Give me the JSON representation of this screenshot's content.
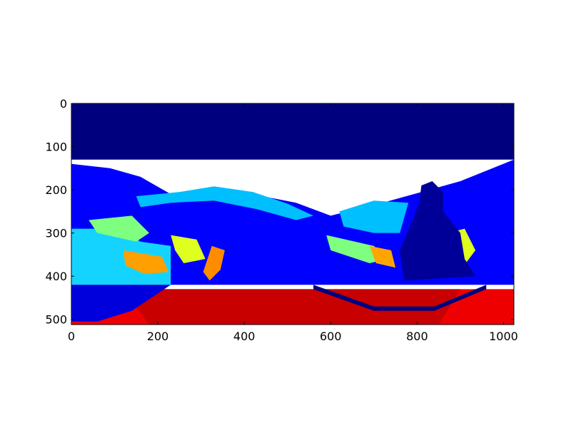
{
  "chart_data": {
    "type": "heatmap",
    "title": "",
    "xlabel": "",
    "ylabel": "",
    "xlim": [
      0,
      1024
    ],
    "ylim": [
      512,
      0
    ],
    "x_ticks": [
      0,
      200,
      400,
      600,
      800,
      1000
    ],
    "y_ticks": [
      0,
      100,
      200,
      300,
      400,
      500
    ],
    "x_tick_labels": [
      "0",
      "200",
      "400",
      "600",
      "800",
      "1000"
    ],
    "y_tick_labels": [
      "0",
      "100",
      "200",
      "300",
      "400",
      "500"
    ],
    "colormap": "jet",
    "grid": false,
    "legend": "none",
    "regions": [
      {
        "name": "sky-top",
        "value": 0.0,
        "color": "#00007f",
        "points": [
          [
            0,
            0
          ],
          [
            1024,
            0
          ],
          [
            1024,
            130
          ],
          [
            0,
            130
          ]
        ]
      },
      {
        "name": "wall-band",
        "value": 0.2,
        "color": "#0000ff",
        "points": [
          [
            0,
            140
          ],
          [
            90,
            150
          ],
          [
            160,
            170
          ],
          [
            230,
            210
          ],
          [
            340,
            195
          ],
          [
            520,
            230
          ],
          [
            600,
            260
          ],
          [
            720,
            230
          ],
          [
            900,
            180
          ],
          [
            1024,
            130
          ],
          [
            1024,
            420
          ],
          [
            0,
            420
          ]
        ]
      },
      {
        "name": "ceiling-arc",
        "value": 0.35,
        "color": "#00bfff",
        "points": [
          [
            150,
            215
          ],
          [
            250,
            205
          ],
          [
            330,
            192
          ],
          [
            420,
            205
          ],
          [
            500,
            232
          ],
          [
            560,
            260
          ],
          [
            520,
            270
          ],
          [
            430,
            245
          ],
          [
            330,
            225
          ],
          [
            230,
            230
          ],
          [
            160,
            240
          ]
        ]
      },
      {
        "name": "right-ceiling",
        "value": 0.35,
        "color": "#00bfff",
        "points": [
          [
            620,
            250
          ],
          [
            700,
            225
          ],
          [
            780,
            230
          ],
          [
            760,
            300
          ],
          [
            700,
            300
          ],
          [
            630,
            285
          ]
        ]
      },
      {
        "name": "left-panel",
        "value": 0.35,
        "color": "#14d4ff",
        "points": [
          [
            0,
            290
          ],
          [
            110,
            290
          ],
          [
            160,
            320
          ],
          [
            230,
            330
          ],
          [
            230,
            420
          ],
          [
            0,
            420
          ]
        ]
      },
      {
        "name": "left-green",
        "value": 0.55,
        "color": "#7fff7f",
        "points": [
          [
            40,
            270
          ],
          [
            140,
            260
          ],
          [
            180,
            300
          ],
          [
            150,
            320
          ],
          [
            60,
            300
          ]
        ]
      },
      {
        "name": "green-stripe",
        "value": 0.55,
        "color": "#7fff7f",
        "points": [
          [
            590,
            305
          ],
          [
            700,
            330
          ],
          [
            730,
            360
          ],
          [
            690,
            370
          ],
          [
            600,
            340
          ]
        ]
      },
      {
        "name": "yellow-left",
        "value": 0.65,
        "color": "#dfff1f",
        "points": [
          [
            230,
            305
          ],
          [
            290,
            315
          ],
          [
            310,
            360
          ],
          [
            260,
            370
          ],
          [
            240,
            340
          ]
        ]
      },
      {
        "name": "yellow-right",
        "value": 0.65,
        "color": "#dfff1f",
        "points": [
          [
            870,
            300
          ],
          [
            910,
            290
          ],
          [
            935,
            340
          ],
          [
            905,
            380
          ],
          [
            880,
            360
          ]
        ]
      },
      {
        "name": "orange-block",
        "value": 0.78,
        "color": "#ff9f00",
        "points": [
          [
            120,
            340
          ],
          [
            210,
            355
          ],
          [
            225,
            390
          ],
          [
            170,
            395
          ],
          [
            125,
            375
          ]
        ]
      },
      {
        "name": "orange-mid",
        "value": 0.78,
        "color": "#ff8c00",
        "points": [
          [
            325,
            330
          ],
          [
            355,
            340
          ],
          [
            345,
            385
          ],
          [
            320,
            410
          ],
          [
            305,
            390
          ]
        ]
      },
      {
        "name": "orange-right",
        "value": 0.78,
        "color": "#ffa500",
        "points": [
          [
            690,
            330
          ],
          [
            740,
            340
          ],
          [
            750,
            380
          ],
          [
            705,
            370
          ]
        ]
      },
      {
        "name": "person",
        "value": 0.05,
        "color": "#000099",
        "points": [
          [
            810,
            190
          ],
          [
            835,
            180
          ],
          [
            860,
            205
          ],
          [
            860,
            250
          ],
          [
            900,
            300
          ],
          [
            910,
            360
          ],
          [
            935,
            400
          ],
          [
            770,
            410
          ],
          [
            760,
            340
          ],
          [
            790,
            270
          ],
          [
            805,
            230
          ]
        ]
      },
      {
        "name": "floor",
        "value": 0.92,
        "color": "#ee0000",
        "points": [
          [
            0,
            430
          ],
          [
            1024,
            430
          ],
          [
            1024,
            512
          ],
          [
            0,
            512
          ]
        ]
      },
      {
        "name": "floor-shadow",
        "value": 0.85,
        "color": "#c80000",
        "points": [
          [
            120,
            430
          ],
          [
            900,
            430
          ],
          [
            850,
            512
          ],
          [
            180,
            512
          ]
        ]
      },
      {
        "name": "floor-arc-dark",
        "value": 0.02,
        "color": "#00007f",
        "points": [
          [
            560,
            420
          ],
          [
            700,
            470
          ],
          [
            840,
            470
          ],
          [
            960,
            420
          ],
          [
            960,
            430
          ],
          [
            840,
            480
          ],
          [
            700,
            480
          ],
          [
            560,
            430
          ]
        ]
      },
      {
        "name": "floor-arc-left",
        "value": 0.1,
        "color": "#0000dd",
        "points": [
          [
            0,
            420
          ],
          [
            230,
            420
          ],
          [
            140,
            480
          ],
          [
            60,
            505
          ],
          [
            0,
            505
          ]
        ]
      }
    ]
  }
}
